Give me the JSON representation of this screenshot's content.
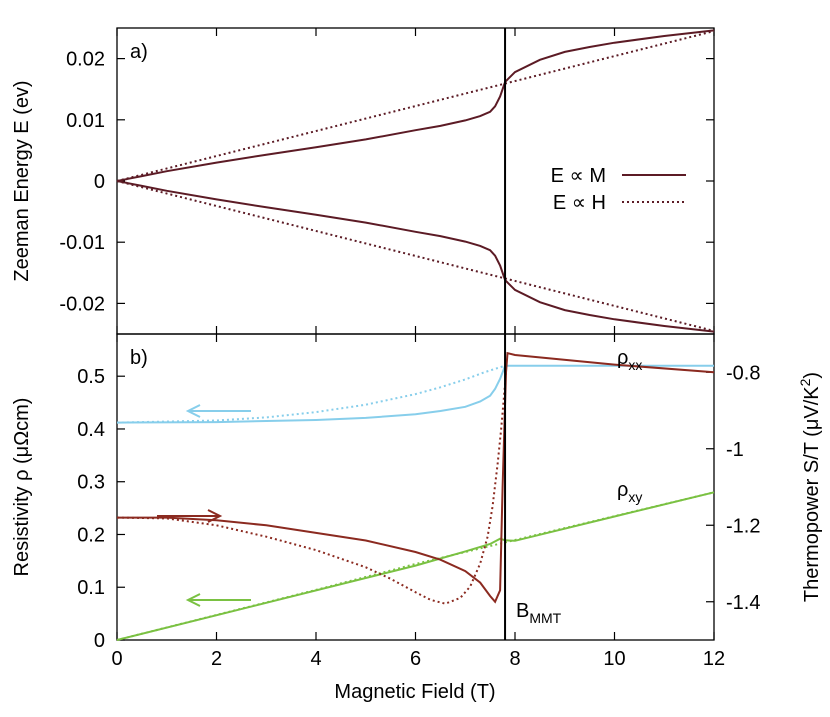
{
  "colors": {
    "zeeman": "#5c1b25",
    "rho_xx": "#87ceeb",
    "rho_xy": "#7ac142",
    "thermopower": "#8b2a20",
    "vline": "#000000"
  },
  "chart_data": [
    {
      "type": "line",
      "panel_label": "a)",
      "xlabel": "",
      "ylabel": "Zeeman Energy E (ev)",
      "xlim": [
        0,
        12
      ],
      "ylim": [
        -0.025,
        0.025
      ],
      "yticks": [
        "-0.02",
        "-0.01",
        "0",
        "0.01",
        "0.02"
      ],
      "yticks_values": [
        -0.02,
        -0.01,
        0,
        0.01,
        0.02
      ],
      "legend_position": "right",
      "vline_x": 7.8,
      "series": [
        {
          "name": "E ∝ M",
          "style": "solid",
          "mirror": true,
          "x": [
            0,
            0.5,
            1,
            2,
            3,
            4,
            5,
            6,
            6.5,
            7,
            7.3,
            7.5,
            7.6,
            7.7,
            7.8,
            8,
            8.5,
            9,
            9.5,
            10,
            11,
            12
          ],
          "y": [
            0,
            0.0008,
            0.0016,
            0.003,
            0.0043,
            0.0055,
            0.0068,
            0.0083,
            0.009,
            0.0099,
            0.0106,
            0.0113,
            0.0122,
            0.0138,
            0.0162,
            0.0178,
            0.0198,
            0.0211,
            0.0219,
            0.0226,
            0.0237,
            0.0246
          ]
        },
        {
          "name": "E ∝ H",
          "style": "dotted",
          "mirror": true,
          "x": [
            0,
            12
          ],
          "y": [
            0,
            0.0245
          ]
        }
      ]
    },
    {
      "type": "line",
      "panel_label": "b)",
      "xlabel": "Magnetic Field (T)",
      "ylabel": "Resistivity ρ (μΩcm)",
      "y2label": "Thermopower S/T (μV/K²)",
      "xlim": [
        0,
        12
      ],
      "ylim": [
        0,
        0.58
      ],
      "y2lim": [
        -1.5,
        -0.7
      ],
      "xticks": [
        "0",
        "2",
        "4",
        "6",
        "8",
        "10",
        "12"
      ],
      "xticks_values": [
        0,
        2,
        4,
        6,
        8,
        10,
        12
      ],
      "yticks": [
        "0",
        "0.1",
        "0.2",
        "0.3",
        "0.4",
        "0.5"
      ],
      "yticks_values": [
        0,
        0.1,
        0.2,
        0.3,
        0.4,
        0.5
      ],
      "y2ticks": [
        "-1.4",
        "-1.2",
        "-1",
        "-0.8"
      ],
      "y2ticks_values": [
        -1.4,
        -1.2,
        -1.0,
        -0.8
      ],
      "vline_x": 7.8,
      "annotations": [
        {
          "text": "ρxx",
          "main": "ρ",
          "sub": "xx"
        },
        {
          "text": "ρxy",
          "main": "ρ",
          "sub": "xy"
        },
        {
          "text": "BMMT",
          "main": "B",
          "sub": "MMT"
        }
      ],
      "series": [
        {
          "name": "ρxx",
          "axis": "left",
          "color": "rho_xx",
          "style": "solid",
          "x": [
            0,
            2,
            4,
            5,
            6,
            6.5,
            7,
            7.3,
            7.5,
            7.6,
            7.7,
            7.8,
            8,
            10,
            12
          ],
          "y": [
            0.412,
            0.413,
            0.417,
            0.421,
            0.428,
            0.434,
            0.442,
            0.452,
            0.463,
            0.476,
            0.495,
            0.52,
            0.52,
            0.52,
            0.52
          ]
        },
        {
          "name": "ρxx",
          "axis": "left",
          "color": "rho_xx",
          "style": "dotted",
          "x": [
            0,
            2,
            3,
            4,
            5,
            6,
            6.5,
            7,
            7.4,
            7.8
          ],
          "y": [
            0.412,
            0.416,
            0.422,
            0.432,
            0.446,
            0.466,
            0.479,
            0.494,
            0.508,
            0.52
          ]
        },
        {
          "name": "ρxy",
          "axis": "left",
          "color": "rho_xy",
          "style": "solid",
          "x": [
            0,
            6,
            7,
            7.5,
            7.7,
            7.8,
            8,
            10,
            12
          ],
          "y": [
            0,
            0.141,
            0.168,
            0.182,
            0.192,
            0.189,
            0.188,
            0.234,
            0.28
          ]
        },
        {
          "name": "ρxy",
          "axis": "left",
          "color": "rho_xy",
          "style": "dotted",
          "x": [
            0,
            4,
            6,
            7.8,
            12
          ],
          "y": [
            0,
            0.095,
            0.144,
            0.185,
            0.28
          ]
        },
        {
          "name": "S/T",
          "axis": "right",
          "color": "thermopower",
          "style": "solid",
          "x": [
            0,
            1,
            2,
            3,
            4,
            5,
            6,
            6.5,
            7,
            7.3,
            7.5,
            7.6,
            7.7,
            7.75,
            7.82,
            7.85,
            8,
            10,
            12
          ],
          "y": [
            -1.18,
            -1.18,
            -1.187,
            -1.2,
            -1.22,
            -1.24,
            -1.27,
            -1.29,
            -1.32,
            -1.35,
            -1.385,
            -1.4,
            -1.37,
            -1.1,
            -0.8,
            -0.75,
            -0.755,
            -0.78,
            -0.8
          ]
        },
        {
          "name": "S/T",
          "axis": "right",
          "color": "thermopower",
          "style": "dotted",
          "x": [
            0,
            1,
            2,
            3,
            4,
            5,
            5.5,
            6,
            6.3,
            6.6,
            6.9,
            7.1,
            7.3,
            7.45,
            7.55,
            7.65,
            7.72,
            7.78,
            7.82
          ],
          "y": [
            -1.18,
            -1.182,
            -1.2,
            -1.23,
            -1.265,
            -1.31,
            -1.34,
            -1.375,
            -1.395,
            -1.405,
            -1.39,
            -1.36,
            -1.3,
            -1.23,
            -1.15,
            -1.04,
            -0.95,
            -0.86,
            -0.8
          ]
        }
      ]
    }
  ]
}
